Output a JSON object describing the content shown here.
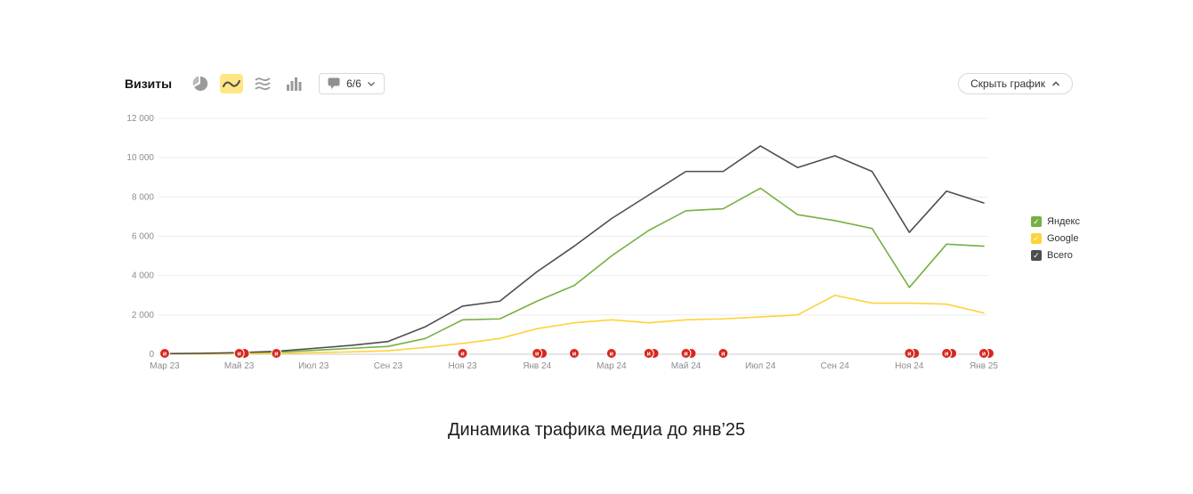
{
  "header": {
    "title": "Визиты",
    "comments_label": "6/6",
    "hide_chart_label": "Скрыть график"
  },
  "caption": "Динамика трафика медиа до янв’25",
  "chart_data": {
    "type": "line",
    "title": "Динамика трафика медиа до янв’25",
    "xlabel": "",
    "ylabel": "",
    "grid": true,
    "legend_position": "right",
    "ylim": [
      0,
      12000
    ],
    "y_ticks": [
      0,
      2000,
      4000,
      6000,
      8000,
      10000,
      12000
    ],
    "y_tick_labels": [
      "0",
      "2 000",
      "4 000",
      "6 000",
      "8 000",
      "10 000",
      "12 000"
    ],
    "x_tick_step": 2,
    "x": [
      "Мар 23",
      "Апр 23",
      "Май 23",
      "Июн 23",
      "Июл 23",
      "Авг 23",
      "Сен 23",
      "Окт 23",
      "Ноя 23",
      "Дек 23",
      "Янв 24",
      "Фев 24",
      "Мар 24",
      "Апр 24",
      "Май 24",
      "Июн 24",
      "Июл 24",
      "Авг 24",
      "Сен 24",
      "Окт 24",
      "Ноя 24",
      "Дек 24",
      "Янв 25"
    ],
    "series": [
      {
        "name": "Яндекс",
        "color": "#76b041",
        "values": [
          20,
          30,
          50,
          100,
          200,
          300,
          400,
          800,
          1750,
          1800,
          2700,
          3500,
          5000,
          6300,
          7300,
          7400,
          8450,
          7100,
          6800,
          6400,
          3400,
          5600,
          5500
        ]
      },
      {
        "name": "Google",
        "color": "#ffd23b",
        "values": [
          10,
          15,
          25,
          40,
          80,
          120,
          180,
          350,
          550,
          800,
          1300,
          1600,
          1750,
          1600,
          1750,
          1800,
          1900,
          2000,
          3000,
          2600,
          2600,
          2550,
          2100
        ]
      },
      {
        "name": "Всего",
        "color": "#4e4e4e",
        "values": [
          30,
          50,
          80,
          150,
          300,
          450,
          650,
          1400,
          2450,
          2700,
          4200,
          5500,
          6900,
          8100,
          9300,
          9300,
          10600,
          9500,
          10100,
          9300,
          6200,
          8300,
          7700
        ]
      }
    ],
    "annotation_markers": {
      "color": "#d6281e",
      "glyph": "и",
      "points": [
        {
          "month_index": 0,
          "count": 1
        },
        {
          "month_index": 2,
          "count": 2
        },
        {
          "month_index": 3,
          "count": 1
        },
        {
          "month_index": 8,
          "count": 1
        },
        {
          "month_index": 10,
          "count": 2
        },
        {
          "month_index": 11,
          "count": 1
        },
        {
          "month_index": 12,
          "count": 1
        },
        {
          "month_index": 13,
          "count": 2
        },
        {
          "month_index": 14,
          "count": 2
        },
        {
          "month_index": 15,
          "count": 1
        },
        {
          "month_index": 20,
          "count": 2
        },
        {
          "month_index": 21,
          "count": 2
        },
        {
          "month_index": 22,
          "count": 2
        }
      ]
    }
  }
}
